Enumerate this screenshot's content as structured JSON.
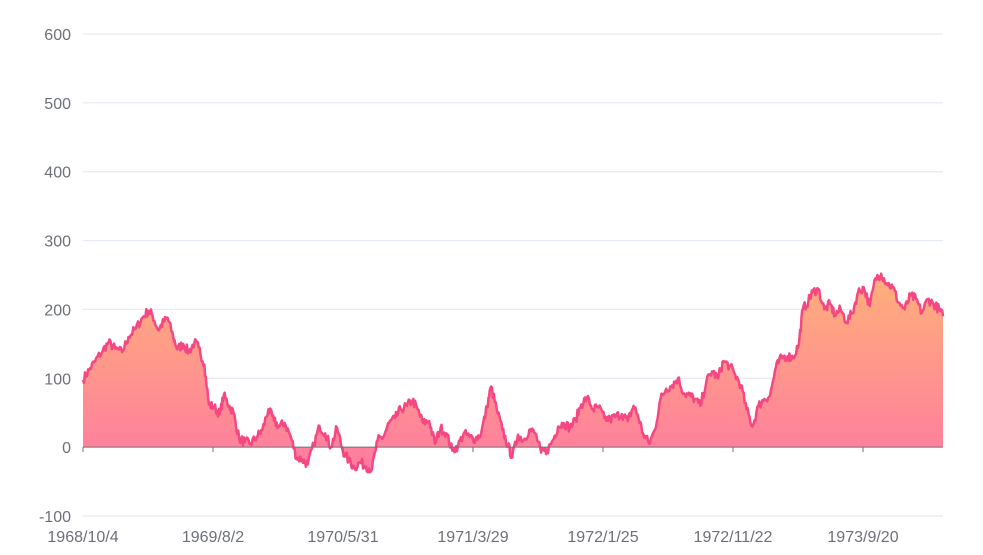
{
  "chart_data": {
    "type": "area",
    "ylim": [
      -100,
      600
    ],
    "yticks": [
      600,
      500,
      400,
      300,
      200,
      100,
      0,
      -100
    ],
    "x_tick_labels": [
      "1968/10/4",
      "1969/8/2",
      "1970/5/31",
      "1971/3/29",
      "1972/1/25",
      "1972/11/22",
      "1973/9/20"
    ],
    "x_start": "1968/10/4",
    "x_end": "1974/5/18",
    "grid": true,
    "series": [
      {
        "line_color": "#f54782",
        "fill_top_color": "#ffb07a",
        "fill_bottom_color": "#ff7aa0",
        "points": [
          [
            "1968/10/4",
            98
          ],
          [
            "1968/10/20",
            112
          ],
          [
            "1968/11/5",
            125
          ],
          [
            "1968/11/25",
            140
          ],
          [
            "1968/12/10",
            152
          ],
          [
            "1968/12/28",
            143
          ],
          [
            "1969/1/15",
            138
          ],
          [
            "1969/2/1",
            160
          ],
          [
            "1969/2/20",
            172
          ],
          [
            "1969/3/10",
            188
          ],
          [
            "1969/3/25",
            198
          ],
          [
            "1969/4/5",
            192
          ],
          [
            "1969/4/20",
            170
          ],
          [
            "1969/5/5",
            182
          ],
          [
            "1969/5/15",
            188
          ],
          [
            "1969/5/30",
            160
          ],
          [
            "1969/6/10",
            142
          ],
          [
            "1969/6/25",
            150
          ],
          [
            "1969/7/10",
            138
          ],
          [
            "1969/7/25",
            152
          ],
          [
            "1969/8/5",
            145
          ],
          [
            "1969/8/20",
            120
          ],
          [
            "1969/9/1",
            62
          ],
          [
            "1969/9/15",
            58
          ],
          [
            "1969/9/30",
            48
          ],
          [
            "1969/10/10",
            75
          ],
          [
            "1969/10/25",
            60
          ],
          [
            "1969/11/5",
            50
          ],
          [
            "1969/11/20",
            12
          ],
          [
            "1969/12/5",
            8
          ],
          [
            "1969/12/20",
            5
          ],
          [
            "1970/1/5",
            15
          ],
          [
            "1970/1/20",
            25
          ],
          [
            "1970/2/5",
            55
          ],
          [
            "1970/2/20",
            38
          ],
          [
            "1970/3/5",
            30
          ],
          [
            "1970/3/20",
            35
          ],
          [
            "1970/4/5",
            15
          ],
          [
            "1970/4/20",
            -15
          ],
          [
            "1970/5/5",
            -18
          ],
          [
            "1970/5/20",
            -25
          ],
          [
            "1970/6/5",
            5
          ],
          [
            "1970/6/20",
            30
          ],
          [
            "1970/7/5",
            20
          ],
          [
            "1970/7/20",
            0
          ],
          [
            "1970/8/5",
            28
          ],
          [
            "1970/8/20",
            -5
          ],
          [
            "1970/9/5",
            -20
          ],
          [
            "1970/9/20",
            -30
          ],
          [
            "1970/10/5",
            -22
          ],
          [
            "1970/10/20",
            -28
          ],
          [
            "1970/11/5",
            -32
          ],
          [
            "1970/11/20",
            10
          ],
          [
            "1970/12/5",
            15
          ],
          [
            "1970/12/20",
            35
          ],
          [
            "1971/1/5",
            42
          ],
          [
            "1971/1/20",
            55
          ],
          [
            "1971/2/5",
            60
          ],
          [
            "1971/2/20",
            68
          ],
          [
            "1971/3/5",
            55
          ],
          [
            "1971/3/20",
            35
          ],
          [
            "1971/4/5",
            38
          ],
          [
            "1971/4/20",
            5
          ],
          [
            "1971/5/5",
            28
          ],
          [
            "1971/5/20",
            20
          ],
          [
            "1971/6/5",
            -5
          ],
          [
            "1971/6/20",
            2
          ],
          [
            "1971/7/5",
            20
          ],
          [
            "1971/7/20",
            15
          ],
          [
            "1971/8/5",
            12
          ],
          [
            "1971/8/20",
            20
          ],
          [
            "1971/9/5",
            60
          ],
          [
            "1971/9/15",
            88
          ],
          [
            "1971/9/30",
            55
          ],
          [
            "1971/10/15",
            25
          ],
          [
            "1971/10/30",
            2
          ],
          [
            "1971/11/10",
            -15
          ],
          [
            "1971/11/25",
            18
          ],
          [
            "1971/12/10",
            10
          ],
          [
            "1971/12/25",
            25
          ],
          [
            "1972/1/10",
            20
          ],
          [
            "1972/1/25",
            -8
          ],
          [
            "1972/2/10",
            -5
          ],
          [
            "1972/2/25",
            10
          ],
          [
            "1972/3/10",
            30
          ],
          [
            "1972/3/25",
            35
          ],
          [
            "1972/4/10",
            28
          ],
          [
            "1972/4/25",
            40
          ],
          [
            "1972/5/10",
            62
          ],
          [
            "1972/5/25",
            72
          ],
          [
            "1972/6/10",
            55
          ],
          [
            "1972/6/25",
            58
          ],
          [
            "1972/7/10",
            42
          ],
          [
            "1972/7/25",
            40
          ],
          [
            "1972/8/10",
            45
          ],
          [
            "1972/8/25",
            48
          ],
          [
            "1972/9/10",
            38
          ],
          [
            "1972/9/25",
            60
          ],
          [
            "1972/10/5",
            48
          ],
          [
            "1972/10/20",
            20
          ],
          [
            "1972/11/5",
            5
          ],
          [
            "1972/11/20",
            25
          ],
          [
            "1972/12/5",
            70
          ],
          [
            "1972/12/20",
            85
          ],
          [
            "1973/1/5",
            90
          ],
          [
            "1973/1/20",
            100
          ],
          [
            "1973/2/5",
            78
          ],
          [
            "1973/2/20",
            75
          ],
          [
            "1973/3/5",
            70
          ],
          [
            "1973/3/20",
            60
          ],
          [
            "1973/4/5",
            95
          ],
          [
            "1973/4/20",
            110
          ],
          [
            "1973/5/5",
            100
          ],
          [
            "1973/5/20",
            125
          ],
          [
            "1973/6/5",
            118
          ],
          [
            "1973/6/20",
            105
          ],
          [
            "1973/7/5",
            90
          ],
          [
            "1973/7/20",
            55
          ],
          [
            "1973/8/5",
            30
          ],
          [
            "1973/8/20",
            60
          ],
          [
            "1973/9/5",
            70
          ],
          [
            "1973/9/20",
            75
          ],
          [
            "1973/10/5",
            115
          ],
          [
            "1973/10/20",
            130
          ],
          [
            "1973/11/5",
            132
          ],
          [
            "1973/11/20",
            130
          ],
          [
            "1973/12/5",
            150
          ],
          [
            "1973/12/15",
            200
          ],
          [
            "1973/12/30",
            212
          ],
          [
            "1974/1/10",
            225
          ],
          [
            "1974/1/25",
            230
          ],
          [
            "1974/2/10",
            200
          ],
          [
            "1974/2/25",
            208
          ],
          [
            "1974/3/10",
            192
          ],
          [
            "1974/3/25",
            200
          ],
          [
            "1974/4/10",
            182
          ],
          [
            "1974/4/25",
            195
          ],
          [
            "1974/5/10",
            225
          ],
          [
            "1974/5/25",
            232
          ],
          [
            "1974/6/10",
            205
          ],
          [
            "1974/6/25",
            245
          ],
          [
            "1974/7/10",
            252
          ],
          [
            "1974/7/25",
            238
          ],
          [
            "1974/8/10",
            232
          ],
          [
            "1974/8/25",
            210
          ],
          [
            "1974/9/10",
            200
          ],
          [
            "1974/9/25",
            220
          ],
          [
            "1974/10/10",
            215
          ],
          [
            "1974/10/25",
            195
          ],
          [
            "1974/11/10",
            215
          ],
          [
            "1974/11/25",
            208
          ],
          [
            "1974/12/10",
            200
          ],
          [
            "1974/12/20",
            190
          ]
        ]
      }
    ]
  }
}
